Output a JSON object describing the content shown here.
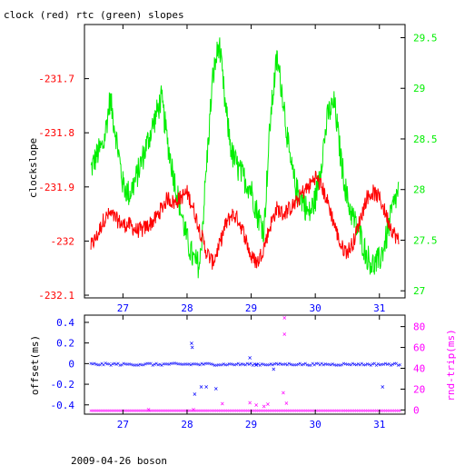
{
  "title": "clock (red) rtc (green) slopes",
  "footer": "2009-04-26 boson",
  "colors": {
    "frame": "#000000",
    "red": "#ff0000",
    "green": "#00ee00",
    "blue": "#0000ff",
    "magenta": "#ff00ff"
  },
  "chart_data": [
    {
      "type": "line",
      "ylabel": "clockslope",
      "y2label": "",
      "xlim": [
        26.4,
        31.4
      ],
      "ylim": [
        -232.105,
        -231.6
      ],
      "y2lim": [
        26.93,
        29.63
      ],
      "x_ticks": [
        27,
        28,
        29,
        30,
        31
      ],
      "x_tick_labels": [
        "27",
        "28",
        "29",
        "30",
        "31"
      ],
      "y_ticks": [
        -231.7,
        -231.8,
        -231.9,
        -232,
        -232.1
      ],
      "y_tick_labels": [
        "-231.7",
        "-231.8",
        "-231.9",
        "-232",
        "-232.1"
      ],
      "y2_ticks": [
        27,
        27.5,
        28,
        28.5,
        29,
        29.5
      ],
      "y2_tick_labels": [
        "27",
        "27.5",
        "28",
        "28.5",
        "29",
        "29.5"
      ],
      "series": [
        {
          "name": "clock",
          "axis": "left",
          "color": "#ff0000",
          "x": [
            26.5,
            26.6,
            26.7,
            26.8,
            26.9,
            27.0,
            27.1,
            27.2,
            27.3,
            27.4,
            27.5,
            27.6,
            27.7,
            27.8,
            27.9,
            28.0,
            28.1,
            28.2,
            28.3,
            28.4,
            28.5,
            28.6,
            28.7,
            28.8,
            28.9,
            29.0,
            29.1,
            29.2,
            29.3,
            29.4,
            29.5,
            29.6,
            29.7,
            29.8,
            29.9,
            30.0,
            30.1,
            30.2,
            30.3,
            30.4,
            30.5,
            30.6,
            30.7,
            30.8,
            30.9,
            31.0,
            31.1,
            31.2,
            31.3
          ],
          "y": [
            -232.01,
            -231.99,
            -231.96,
            -231.95,
            -231.96,
            -231.97,
            -231.97,
            -231.98,
            -231.98,
            -231.97,
            -231.96,
            -231.94,
            -231.92,
            -231.93,
            -231.92,
            -231.91,
            -231.94,
            -231.98,
            -232.02,
            -232.04,
            -232.01,
            -231.97,
            -231.95,
            -231.96,
            -231.99,
            -232.03,
            -232.04,
            -232.01,
            -231.97,
            -231.94,
            -231.95,
            -231.94,
            -231.93,
            -231.91,
            -231.9,
            -231.88,
            -231.9,
            -231.93,
            -231.97,
            -232.01,
            -232.02,
            -232.0,
            -231.96,
            -231.92,
            -231.91,
            -231.92,
            -231.95,
            -231.98,
            -232.0
          ]
        },
        {
          "name": "rtc",
          "axis": "right",
          "color": "#00ee00",
          "x": [
            26.5,
            26.6,
            26.7,
            26.8,
            26.9,
            27.0,
            27.1,
            27.2,
            27.3,
            27.4,
            27.5,
            27.6,
            27.7,
            27.8,
            27.9,
            28.0,
            28.1,
            28.2,
            28.3,
            28.4,
            28.5,
            28.6,
            28.7,
            28.8,
            28.9,
            29.0,
            29.1,
            29.2,
            29.3,
            29.4,
            29.5,
            29.6,
            29.7,
            29.8,
            29.9,
            30.0,
            30.1,
            30.2,
            30.3,
            30.4,
            30.5,
            30.6,
            30.7,
            30.8,
            30.9,
            31.0,
            31.1,
            31.2,
            31.3
          ],
          "y": [
            28.2,
            28.35,
            28.45,
            28.9,
            28.5,
            28.05,
            27.95,
            28.1,
            28.3,
            28.5,
            28.7,
            28.9,
            28.45,
            28.1,
            27.8,
            27.5,
            27.3,
            27.25,
            28.2,
            29.1,
            29.45,
            28.8,
            28.35,
            28.2,
            28.1,
            28.0,
            27.75,
            27.6,
            28.7,
            29.3,
            28.9,
            28.3,
            28.0,
            27.9,
            27.75,
            27.9,
            28.3,
            28.75,
            28.85,
            28.3,
            27.9,
            27.7,
            27.55,
            27.35,
            27.25,
            27.3,
            27.5,
            27.8,
            28.0
          ]
        }
      ]
    },
    {
      "type": "scatter",
      "ylabel": "offset(ms)",
      "y2label": "rnd-trip(ms)",
      "xlim": [
        26.4,
        31.4
      ],
      "ylim": [
        -0.49,
        0.47
      ],
      "y2lim": [
        -4,
        91
      ],
      "x_ticks": [
        27,
        28,
        29,
        30,
        31
      ],
      "x_tick_labels": [
        "27",
        "28",
        "29",
        "30",
        "31"
      ],
      "y_ticks": [
        0.4,
        0.2,
        0,
        -0.2,
        -0.4
      ],
      "y_tick_labels": [
        "0.4",
        "0.2",
        "0",
        "-0.2",
        "-0.4"
      ],
      "y2_ticks": [
        0,
        20,
        40,
        60,
        80
      ],
      "y2_tick_labels": [
        "0",
        "20",
        "40",
        "60",
        "80"
      ],
      "series": [
        {
          "name": "offset",
          "axis": "left",
          "color": "#0000ff",
          "x": [
            28.07,
            28.08,
            28.12,
            28.22,
            28.3,
            28.45,
            28.98,
            29.08,
            29.35,
            31.05
          ],
          "y": [
            0.2,
            0.16,
            -0.29,
            -0.22,
            -0.22,
            -0.24,
            0.06,
            -0.01,
            -0.05,
            -0.22
          ]
        },
        {
          "name": "rnd-trip",
          "axis": "right",
          "color": "#ff00ff",
          "x": [
            27.4,
            28.1,
            28.55,
            28.98,
            29.08,
            29.2,
            29.26,
            29.5,
            29.52,
            29.52,
            29.55
          ],
          "y": [
            0.8,
            0.8,
            6.5,
            7.5,
            5,
            4,
            6,
            17,
            73,
            89,
            7
          ]
        }
      ]
    }
  ]
}
